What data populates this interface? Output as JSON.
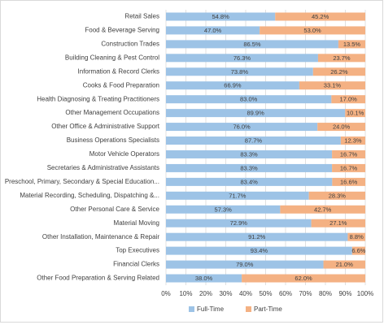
{
  "chart_data": {
    "type": "stacked-bar-horizontal",
    "categories": [
      "Retail Sales",
      "Food & Beverage Serving",
      "Construction Trades",
      "Building Cleaning & Pest Control",
      "Information & Record Clerks",
      "Cooks & Food Preparation",
      "Health Diagnosing & Treating Practitioners",
      "Other Management Occupations",
      "Other Office & Administrative Support",
      "Business Operations Specialists",
      "Motor Vehicle Operators",
      "Secretaries & Administrative Assistants",
      "Preschool, Primary, Secondary & Special Education...",
      "Material Recording, Scheduling, Dispatching &...",
      "Other Personal Care & Service",
      "Material Moving",
      "Other Installation, Maintenance & Repair",
      "Top Executives",
      "Financial Clerks",
      "Other Food Preparation & Serving Related"
    ],
    "series": [
      {
        "name": "Full-Time",
        "color": "#9dc3e6",
        "values": [
          54.8,
          47.0,
          86.5,
          76.3,
          73.8,
          66.9,
          83.0,
          89.9,
          76.0,
          87.7,
          83.3,
          83.3,
          83.4,
          71.7,
          57.3,
          72.9,
          91.2,
          93.4,
          79.0,
          38.0
        ],
        "value_labels": [
          "54.8%",
          "47.0%",
          "86.5%",
          "76.3%",
          "73.8%",
          "66.9%",
          "83.0%",
          "89.9%",
          "76.0%",
          "87.7%",
          "83.3%",
          "83.3%",
          "83.4%",
          "71.7%",
          "57.3%",
          "72.9%",
          "91.2%",
          "93.4%",
          "79.0%",
          "38.0%"
        ]
      },
      {
        "name": "Part-Time",
        "color": "#f4b183",
        "values": [
          45.2,
          53.0,
          13.5,
          23.7,
          26.2,
          33.1,
          17.0,
          10.1,
          24.0,
          12.3,
          16.7,
          16.7,
          16.6,
          28.3,
          42.7,
          27.1,
          8.8,
          6.6,
          21.0,
          62.0
        ],
        "value_labels": [
          "45.2%",
          "53.0%",
          "13.5%",
          "23.7%",
          "26.2%",
          "33.1%",
          "17.0%",
          "10.1%",
          "24.0%",
          "12.3%",
          "16.7%",
          "16.7%",
          "16.6%",
          "28.3%",
          "42.7%",
          "27.1%",
          "8.8%",
          "6.6%",
          "21.0%",
          "62.0%"
        ]
      }
    ],
    "xlim": [
      0,
      100
    ],
    "xticks": [
      {
        "value": 0,
        "label": "0%"
      },
      {
        "value": 10,
        "label": "10%"
      },
      {
        "value": 20,
        "label": "20%"
      },
      {
        "value": 30,
        "label": "30%"
      },
      {
        "value": 40,
        "label": "40%"
      },
      {
        "value": 50,
        "label": "50%"
      },
      {
        "value": 60,
        "label": "60%"
      },
      {
        "value": 70,
        "label": "70%"
      },
      {
        "value": 80,
        "label": "80%"
      },
      {
        "value": 90,
        "label": "90%"
      },
      {
        "value": 100,
        "label": "100%"
      }
    ],
    "grid": true,
    "legend": "bottom"
  }
}
